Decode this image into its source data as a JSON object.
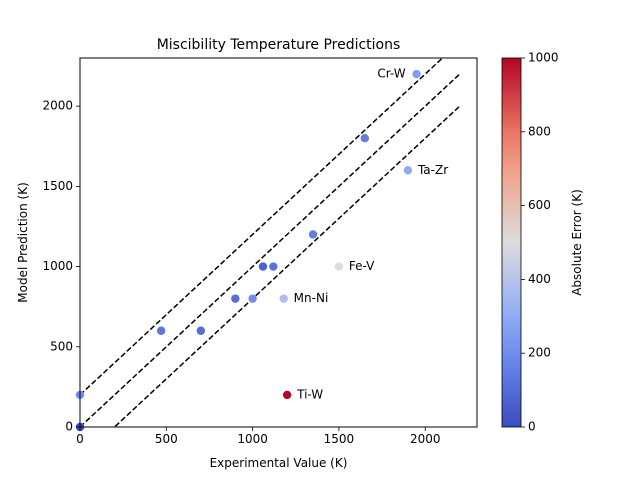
{
  "chart_data": {
    "type": "scatter",
    "title": "Miscibility Temperature Predictions",
    "xlabel": "Experimental Value (K)",
    "ylabel": "Model Prediction (K)",
    "xlim": [
      0,
      2300
    ],
    "ylim": [
      0,
      2300
    ],
    "xticks": [
      0,
      500,
      1000,
      1500,
      2000
    ],
    "yticks": [
      0,
      500,
      1000,
      1500,
      2000
    ],
    "grid": false,
    "colormap": "coolwarm",
    "colorbar": {
      "label": "Absolute Error (K)",
      "range": [
        0,
        1000
      ],
      "ticks": [
        0,
        200,
        400,
        600,
        800,
        1000
      ]
    },
    "reference_lines": [
      {
        "style": "dashed",
        "x": [
          0,
          2200
        ],
        "y": [
          200,
          2400
        ]
      },
      {
        "style": "dashed",
        "x": [
          0,
          2200
        ],
        "y": [
          0,
          2200
        ]
      },
      {
        "style": "dashed",
        "x": [
          0,
          2200
        ],
        "y": [
          -200,
          2000
        ]
      }
    ],
    "points": [
      {
        "x": 0,
        "y": 0,
        "error": 0,
        "label": ""
      },
      {
        "x": 0,
        "y": 200,
        "error": 200,
        "label": ""
      },
      {
        "x": 470,
        "y": 600,
        "error": 130,
        "label": ""
      },
      {
        "x": 700,
        "y": 600,
        "error": 100,
        "label": ""
      },
      {
        "x": 900,
        "y": 800,
        "error": 100,
        "label": ""
      },
      {
        "x": 1000,
        "y": 800,
        "error": 200,
        "label": ""
      },
      {
        "x": 1060,
        "y": 1000,
        "error": 60,
        "label": ""
      },
      {
        "x": 1120,
        "y": 1000,
        "error": 120,
        "label": ""
      },
      {
        "x": 1180,
        "y": 800,
        "error": 380,
        "label": "Mn-Ni"
      },
      {
        "x": 1200,
        "y": 200,
        "error": 1000,
        "label": "Ti-W"
      },
      {
        "x": 1350,
        "y": 1200,
        "error": 150,
        "label": ""
      },
      {
        "x": 1500,
        "y": 1000,
        "error": 500,
        "label": "Fe-V"
      },
      {
        "x": 1650,
        "y": 1800,
        "error": 150,
        "label": ""
      },
      {
        "x": 1900,
        "y": 1600,
        "error": 300,
        "label": "Ta-Zr"
      },
      {
        "x": 1950,
        "y": 2200,
        "error": 250,
        "label": "Cr-W"
      }
    ]
  }
}
